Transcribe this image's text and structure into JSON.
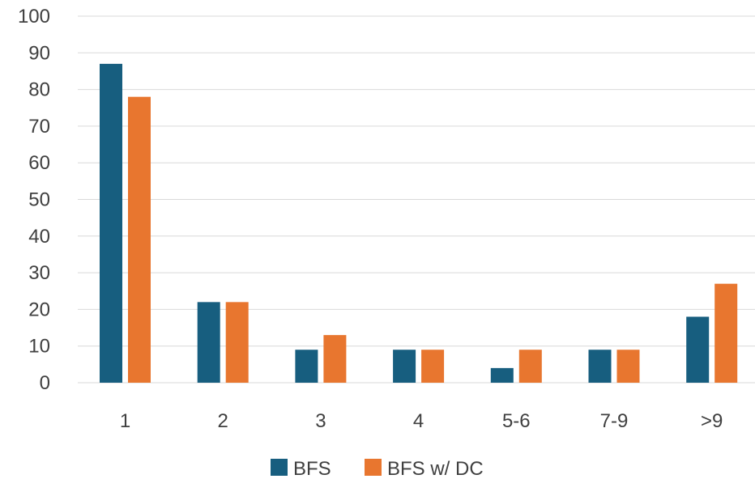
{
  "chart_data": {
    "type": "bar",
    "title": "",
    "xlabel": "",
    "ylabel": "",
    "categories": [
      "1",
      "2",
      "3",
      "4",
      "5-6",
      "7-9",
      ">9"
    ],
    "series": [
      {
        "name": "BFS",
        "color": "#175e7f",
        "values": [
          87,
          22,
          9,
          9,
          4,
          9,
          18
        ]
      },
      {
        "name": "BFS w/ DC",
        "color": "#e8762f",
        "values": [
          78,
          22,
          13,
          9,
          9,
          9,
          27
        ]
      }
    ],
    "ylim": [
      0,
      100
    ],
    "yticks": [
      "0",
      "10",
      "20",
      "30",
      "40",
      "50",
      "60",
      "70",
      "80",
      "90",
      "100"
    ],
    "grid": true,
    "legend_position": "bottom"
  }
}
